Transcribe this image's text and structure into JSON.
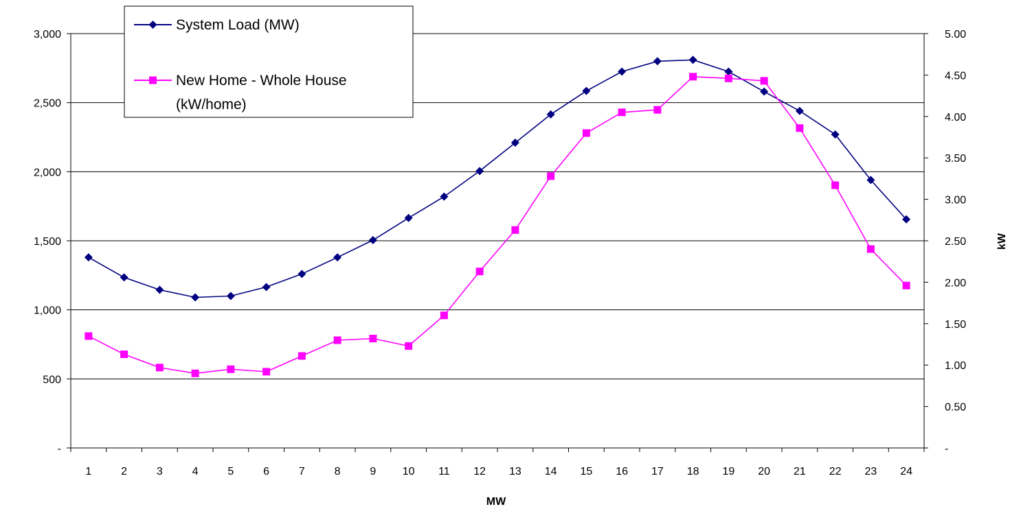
{
  "chart_data": {
    "type": "line",
    "title": "",
    "xlabel": "MW",
    "ylabel_left": "",
    "ylabel_right": "kW",
    "x": [
      "1",
      "2",
      "3",
      "4",
      "5",
      "6",
      "7",
      "8",
      "9",
      "10",
      "11",
      "12",
      "13",
      "14",
      "15",
      "16",
      "17",
      "18",
      "19",
      "20",
      "21",
      "22",
      "23",
      "24"
    ],
    "y_left": {
      "min": 0,
      "max": 3000,
      "step": 500,
      "tick_labels": [
        "-",
        "500",
        "1,000",
        "1,500",
        "2,000",
        "2,500",
        "3,000"
      ]
    },
    "y_right": {
      "min": 0,
      "max": 5,
      "step": 0.5,
      "tick_labels": [
        "-",
        "0.50",
        "1.00",
        "1.50",
        "2.00",
        "2.50",
        "3.00",
        "3.50",
        "4.00",
        "4.50",
        "5.00"
      ]
    },
    "grid": "horizontal",
    "legend_position": "top-left",
    "series": [
      {
        "name": "System Load (MW)",
        "axis": "left",
        "color": "#000080",
        "marker": "diamond",
        "values": [
          1380,
          1235,
          1145,
          1090,
          1100,
          1165,
          1260,
          1380,
          1505,
          1665,
          1820,
          2005,
          2210,
          2415,
          2585,
          2725,
          2800,
          2810,
          2725,
          2580,
          2440,
          2270,
          1940,
          1655
        ]
      },
      {
        "name": "New Home - Whole House (kW/home)",
        "axis": "right",
        "color": "#ff00ff",
        "marker": "square",
        "values": [
          1.35,
          1.13,
          0.97,
          0.9,
          0.95,
          0.92,
          1.11,
          1.3,
          1.32,
          1.23,
          1.6,
          2.13,
          2.63,
          3.28,
          3.8,
          4.05,
          4.08,
          4.48,
          4.46,
          4.43,
          3.86,
          3.17,
          2.4,
          1.96
        ]
      }
    ],
    "legend": {
      "line1": "System Load (MW)",
      "line2a": "New Home - Whole House",
      "line2b": "(kW/home)"
    }
  }
}
